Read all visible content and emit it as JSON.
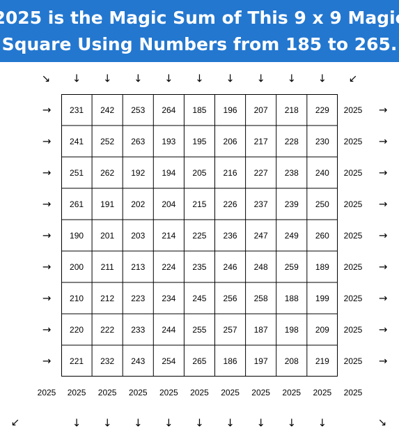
{
  "title": {
    "line1": "2025 is the Magic Sum of This 9 x 9 Magic",
    "line2": "Square Using Numbers from 185 to 265."
  },
  "magic_sum": "2025",
  "grid": [
    [
      231,
      242,
      253,
      264,
      185,
      196,
      207,
      218,
      229
    ],
    [
      241,
      252,
      263,
      193,
      195,
      206,
      217,
      228,
      230
    ],
    [
      251,
      262,
      192,
      194,
      205,
      216,
      227,
      238,
      240
    ],
    [
      261,
      191,
      202,
      204,
      215,
      226,
      237,
      239,
      250
    ],
    [
      190,
      201,
      203,
      214,
      225,
      236,
      247,
      249,
      260
    ],
    [
      200,
      211,
      213,
      224,
      235,
      246,
      248,
      259,
      189
    ],
    [
      210,
      212,
      223,
      234,
      245,
      256,
      258,
      188,
      199
    ],
    [
      220,
      222,
      233,
      244,
      255,
      257,
      187,
      198,
      209
    ],
    [
      221,
      232,
      243,
      254,
      265,
      186,
      197,
      208,
      219
    ]
  ],
  "row_sums": [
    "2025",
    "2025",
    "2025",
    "2025",
    "2025",
    "2025",
    "2025",
    "2025",
    "2025"
  ],
  "column_sums": [
    "2025",
    "2025",
    "2025",
    "2025",
    "2025",
    "2025",
    "2025",
    "2025",
    "2025"
  ],
  "diagonal_sums": {
    "anti_diagonal": "2025",
    "main_diagonal": "2025"
  },
  "arrows": {
    "right": "→",
    "down": "↓",
    "down_right": "↘",
    "down_left": "↙"
  }
}
